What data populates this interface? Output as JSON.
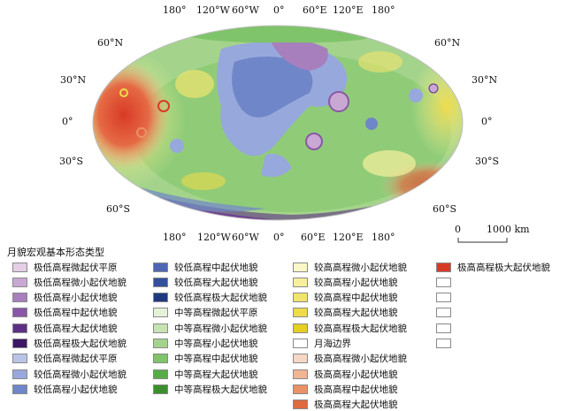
{
  "map": {
    "top_lon_labels": [
      "180°",
      "120°W",
      "60°W",
      "0°",
      "60°E",
      "120°E",
      "180°"
    ],
    "bottom_lon_labels": [
      "180°",
      "120°W",
      "60°W",
      "0°",
      "60°E",
      "120°E",
      "180°"
    ],
    "left_lat_labels": [
      "60°N",
      "30°N",
      "0°",
      "30°S",
      "60°S"
    ],
    "right_lat_labels": [
      "60°N",
      "30°N",
      "0°",
      "30°S",
      "60°S"
    ]
  },
  "scale": {
    "zero": "0",
    "distance": "1000 km"
  },
  "legend": {
    "title": "月貌宏观基本形态类型",
    "items": [
      {
        "label": "极低高程微起伏平原",
        "color": "#e4cfe6"
      },
      {
        "label": "极低高程微小起伏地貌",
        "color": "#c9a8d4"
      },
      {
        "label": "极低高程小起伏地貌",
        "color": "#a77fbd"
      },
      {
        "label": "极低高程中起伏地貌",
        "color": "#8a57a6"
      },
      {
        "label": "极低高程大起伏地貌",
        "color": "#5e2f86"
      },
      {
        "label": "极低高程极大起伏地貌",
        "color": "#3b1766"
      },
      {
        "label": "较低高程微起伏平原",
        "color": "#b9c5e8"
      },
      {
        "label": "较低高程微小起伏地貌",
        "color": "#97a8dc"
      },
      {
        "label": "较低高程小起伏地貌",
        "color": "#6f86c9"
      },
      {
        "label": "较低高程中起伏地貌",
        "color": "#4d67b4"
      },
      {
        "label": "较低高程大起伏地貌",
        "color": "#32509e"
      },
      {
        "label": "较低高程极大起伏地貌",
        "color": "#1d3a80"
      },
      {
        "label": "中等高程微起伏平原",
        "color": "#e5f2d9"
      },
      {
        "label": "中等高程微小起伏地貌",
        "color": "#c6e3b1"
      },
      {
        "label": "中等高程小起伏地貌",
        "color": "#a4d48b"
      },
      {
        "label": "中等高程中起伏地貌",
        "color": "#7fc46a"
      },
      {
        "label": "中等高程大起伏地貌",
        "color": "#57ad45"
      },
      {
        "label": "中等高程极大起伏地貌",
        "color": "#3a8f2c"
      },
      {
        "label": "较高高程微小起伏地貌",
        "color": "#fbf7c9"
      },
      {
        "label": "较高高程小起伏地貌",
        "color": "#f7ef9c"
      },
      {
        "label": "较高高程中起伏地貌",
        "color": "#f1e46e"
      },
      {
        "label": "较高高程大起伏地貌",
        "color": "#eedb4a"
      },
      {
        "label": "较高高程极大起伏地貌",
        "color": "#e7cf22"
      },
      {
        "label": "月海边界",
        "color": "#ffffff"
      },
      {
        "label": "极高高程微小起伏地貌",
        "color": "#f7d6c4"
      },
      {
        "label": "极高高程小起伏地貌",
        "color": "#f1b594"
      },
      {
        "label": "极高高程中起伏地貌",
        "color": "#ea9166"
      },
      {
        "label": "极高高程大起伏地貌",
        "color": "#e06a3f"
      },
      {
        "label": "极高高程极大起伏地貌",
        "color": "#d93a26"
      }
    ]
  }
}
